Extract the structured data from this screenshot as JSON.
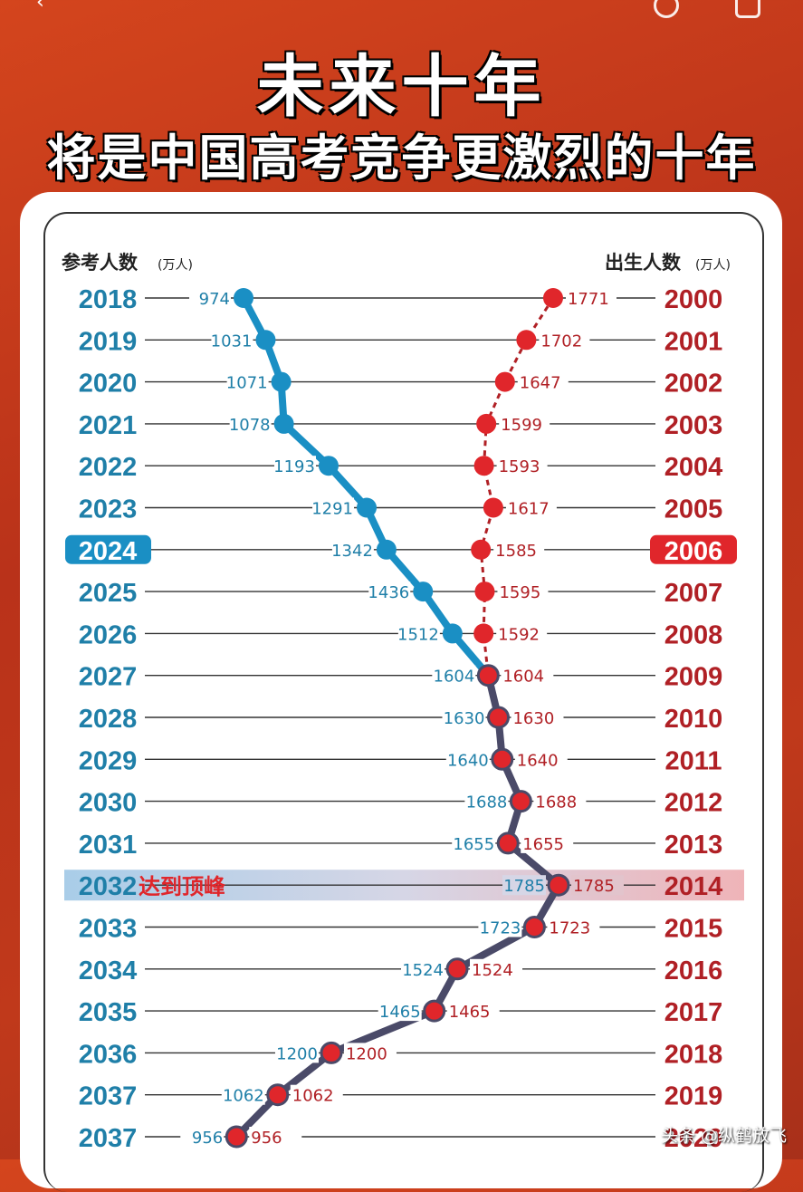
{
  "headline": {
    "line1": "未来十年",
    "line2": "将是中国高考竞争更激烈的十年"
  },
  "watermark": "头条 @纵鹤放飞",
  "colors": {
    "exam": "#1a8fc4",
    "exam_year": "#1f7fa8",
    "birth": "#e0262b",
    "birth_year": "#b02025",
    "merged_line": "#4a4a68",
    "row_line": "#333333",
    "highlight_bg": "#cfd8ea"
  },
  "chart_data": {
    "type": "line",
    "left_header": "参考人数",
    "left_unit": "(万人)",
    "right_header": "出生人数",
    "right_unit": "(万人)",
    "exam_years": [
      "2018",
      "2019",
      "2020",
      "2021",
      "2022",
      "2023",
      "2024",
      "2025",
      "2026",
      "2027",
      "2028",
      "2029",
      "2030",
      "2031",
      "2032",
      "2033",
      "2034",
      "2035",
      "2036",
      "2037",
      "2037"
    ],
    "birth_years": [
      "2000",
      "2001",
      "2002",
      "2003",
      "2004",
      "2005",
      "2006",
      "2007",
      "2008",
      "2009",
      "2010",
      "2011",
      "2012",
      "2013",
      "2014",
      "2015",
      "2016",
      "2017",
      "2018",
      "2019",
      "2020"
    ],
    "series": [
      {
        "name": "参考人数",
        "values": [
          974,
          1031,
          1071,
          1078,
          1193,
          1291,
          1342,
          1436,
          1512,
          1604,
          1630,
          1640,
          1688,
          1655,
          1785,
          1723,
          1524,
          1465,
          1200,
          1062,
          956
        ]
      },
      {
        "name": "出生人数",
        "values": [
          1771,
          1702,
          1647,
          1599,
          1593,
          1617,
          1585,
          1595,
          1592,
          1604,
          1630,
          1640,
          1688,
          1655,
          1785,
          1723,
          1524,
          1465,
          1200,
          1062,
          956
        ]
      }
    ],
    "merge_index": 9,
    "highlight_current_index": 6,
    "peak_index": 14,
    "peak_label": "达到顶峰"
  }
}
